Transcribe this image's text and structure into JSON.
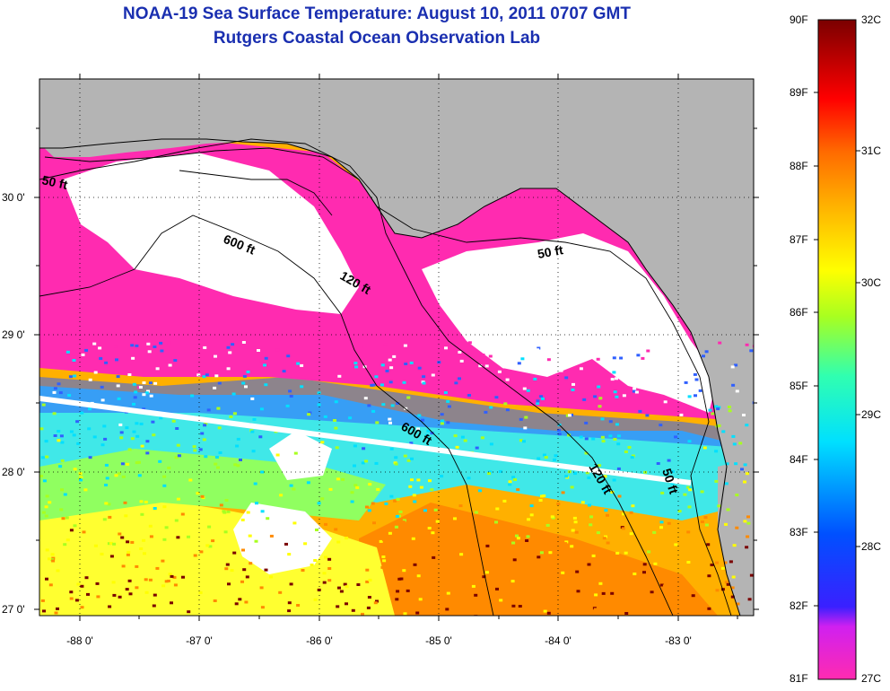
{
  "title": "NOAA-19 Sea Surface Temperature:  August 10, 2011 0707 GMT",
  "subtitle": "Rutgers Coastal Ocean Observation Lab",
  "axes": {
    "lat_labels": [
      "30 0'",
      "29 0'",
      "28 0'",
      "27 0'"
    ],
    "lon_labels": [
      "-88 0'",
      "-87 0'",
      "-86 0'",
      "-85 0'",
      "-84 0'",
      "-83 0'"
    ]
  },
  "contour_labels": [
    "50 ft",
    "600 ft",
    "120 ft",
    "50 ft",
    "600 ft",
    "120 ft",
    "50 ft"
  ],
  "colorbar": {
    "f_labels": [
      "90F",
      "89F",
      "88F",
      "87F",
      "86F",
      "85F",
      "84F",
      "83F",
      "82F",
      "81F"
    ],
    "c_labels": [
      "32C",
      "31C",
      "30C",
      "29C",
      "28C",
      "27C"
    ]
  },
  "colors": {
    "land": "#b4b4b4",
    "cloud": "#ffffff",
    "title": "#1a2fb0",
    "coldest": "#ff2bb0",
    "warmest": "#7a0000"
  }
}
